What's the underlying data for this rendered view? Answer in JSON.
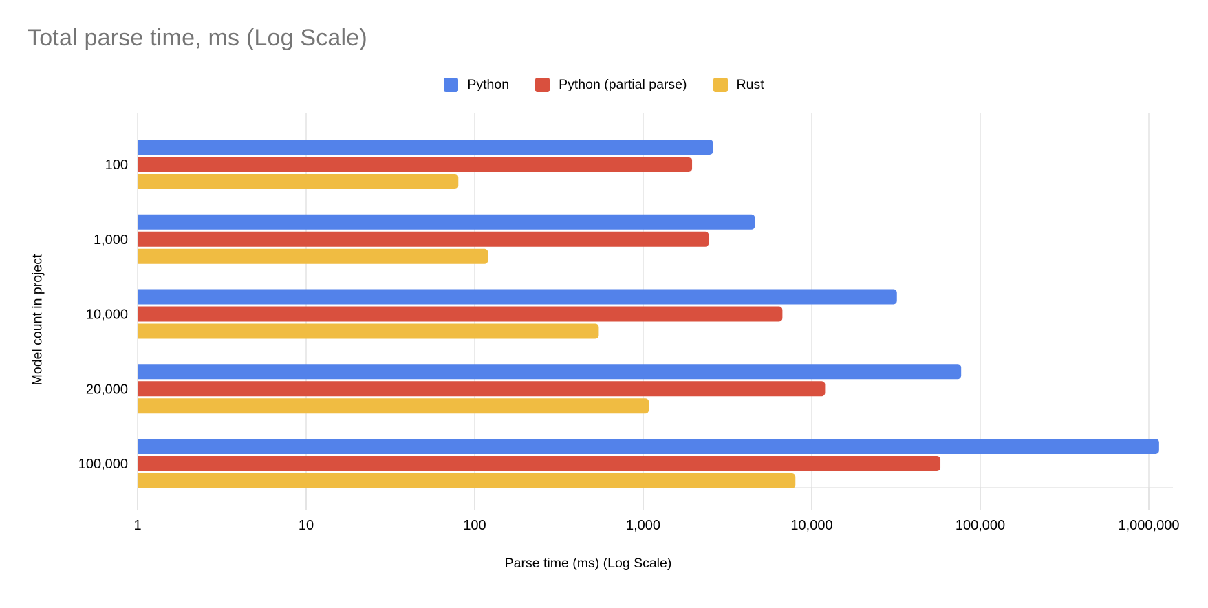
{
  "title": "Total parse time, ms (Log Scale)",
  "legend": [
    {
      "label": "Python",
      "color": "#5382EA"
    },
    {
      "label": "Python (partial parse)",
      "color": "#D9503E"
    },
    {
      "label": "Rust",
      "color": "#F0BC42"
    }
  ],
  "chart_data": {
    "type": "bar",
    "orientation": "horizontal",
    "title": "Total parse time, ms (Log Scale)",
    "xlabel": "Parse time (ms) (Log Scale)",
    "ylabel": "Model count in project",
    "x_log_scale": true,
    "xlim": [
      1,
      1000000
    ],
    "x_ticks": [
      "1",
      "10",
      "100",
      "1,000",
      "10,000",
      "100,000",
      "1,000,000"
    ],
    "categories": [
      "100",
      "1,000",
      "10,000",
      "20,000",
      "100,000"
    ],
    "series": [
      {
        "name": "Python",
        "color": "#5382EA",
        "values": [
          2600,
          4600,
          32000,
          77000,
          1150000
        ]
      },
      {
        "name": "Python (partial parse)",
        "color": "#D9503E",
        "values": [
          1950,
          2450,
          6700,
          12000,
          58000
        ]
      },
      {
        "name": "Rust",
        "color": "#F0BC42",
        "values": [
          80,
          120,
          545,
          1080,
          8000
        ]
      }
    ],
    "grid": true,
    "legend_position": "top",
    "gridline_color": "#D6D6D6",
    "title_color": "#757575"
  }
}
